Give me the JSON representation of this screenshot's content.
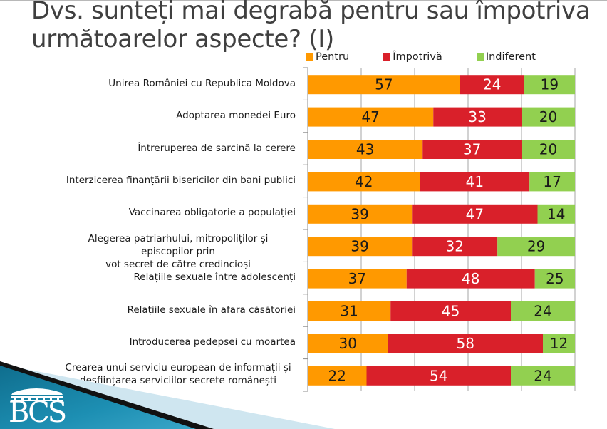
{
  "title": "Dvs. sunteți mai degrabă pentru sau împotriva următoarelor aspecte? (I)",
  "logo": {
    "text": "BCS"
  },
  "colors": {
    "pentru": "#FF9900",
    "impotriva": "#D9202A",
    "indiferent": "#92D050"
  },
  "chart_data": {
    "type": "bar",
    "orientation": "horizontal",
    "stacked": true,
    "title": "Dvs. sunteți mai degrabă pentru sau împotriva următoarelor aspecte? (I)",
    "xlabel": "",
    "ylabel": "",
    "xlim": [
      0,
      100
    ],
    "grid": true,
    "legend_position": "top",
    "categories": [
      "Unirea României cu Republica Moldova",
      "Adoptarea monedei Euro",
      "Întreruperea de sarcină la cerere",
      "Interzicerea finanțării bisericilor din bani publici",
      "Vaccinarea obligatorie a populației",
      "Alegerea patriarhului, mitropoliților și episcopilor prin vot secret de către credincioși",
      "Relațiile sexuale între adolescenți",
      "Relațiile sexuale în afara căsătoriei",
      "Introducerea pedepsei cu moartea",
      "Crearea unui serviciu european de informații și desființarea serviciilor secrete românești"
    ],
    "category_lines": [
      [
        "Unirea României cu Republica Moldova"
      ],
      [
        "Adoptarea monedei Euro"
      ],
      [
        "Întreruperea de sarcină la cerere"
      ],
      [
        "Interzicerea finanțării bisericilor din bani publici"
      ],
      [
        "Vaccinarea obligatorie a populației"
      ],
      [
        "Alegerea patriarhului, mitropoliților și episcopilor prin",
        "vot secret de către credincioși"
      ],
      [
        "Relațiile sexuale între adolescenți"
      ],
      [
        "Relațiile sexuale în afara căsătoriei"
      ],
      [
        "Introducerea pedepsei cu moartea"
      ],
      [
        "Crearea unui serviciu european de informații și",
        "desființarea serviciilor secrete românești"
      ]
    ],
    "series": [
      {
        "name": "Pentru",
        "color": "#FF9900",
        "label_color": "#1a1a1a",
        "values": [
          57,
          47,
          43,
          42,
          39,
          39,
          37,
          31,
          30,
          22
        ]
      },
      {
        "name": "Împotrivă",
        "color": "#D9202A",
        "label_color": "#ffffff",
        "values": [
          24,
          33,
          37,
          41,
          47,
          32,
          48,
          45,
          58,
          54
        ]
      },
      {
        "name": "Indiferent",
        "color": "#92D050",
        "label_color": "#1a1a1a",
        "values": [
          19,
          20,
          20,
          17,
          14,
          29,
          25,
          24,
          12,
          24
        ]
      }
    ],
    "x_ticks": [
      0,
      20,
      40,
      60,
      80,
      100
    ]
  }
}
